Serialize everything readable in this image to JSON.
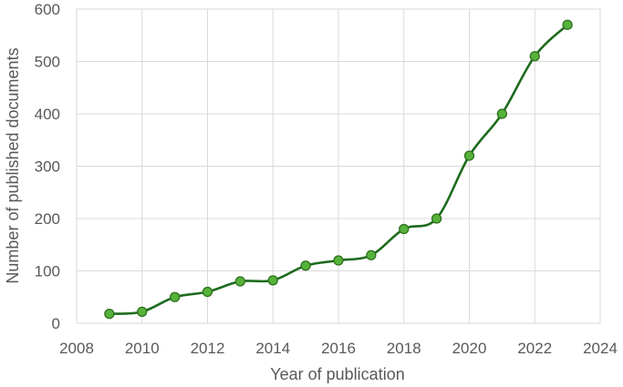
{
  "chart_data": {
    "type": "line",
    "title": "",
    "xlabel": "Year of publication",
    "ylabel": "Number of published documents",
    "xlim": [
      2008,
      2024
    ],
    "ylim": [
      0,
      600
    ],
    "x_ticks": [
      2008,
      2010,
      2012,
      2014,
      2016,
      2018,
      2020,
      2022,
      2024
    ],
    "y_ticks": [
      0,
      100,
      200,
      300,
      400,
      500,
      600
    ],
    "grid": true,
    "smooth": true,
    "legend": "none",
    "colors": {
      "line": "#1e6b1e",
      "marker_fill": "#56b23a",
      "marker_edge": "#2e6f1e",
      "grid": "#d9d9d9",
      "text": "#595959"
    },
    "series": [
      {
        "x": [
          2009,
          2010,
          2011,
          2012,
          2013,
          2014,
          2015,
          2016,
          2017,
          2018,
          2019,
          2020,
          2021,
          2022,
          2023
        ],
        "y": [
          18,
          22,
          50,
          60,
          80,
          82,
          110,
          120,
          130,
          180,
          200,
          320,
          400,
          510,
          570
        ]
      }
    ]
  }
}
